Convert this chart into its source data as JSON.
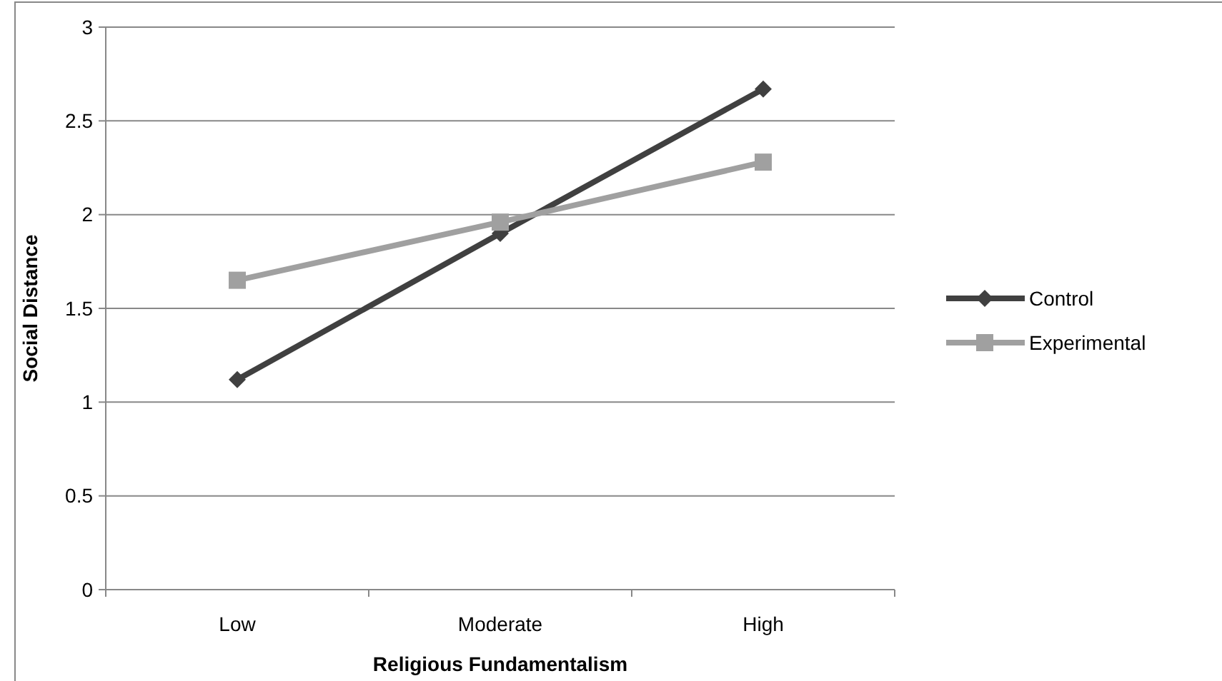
{
  "chart_data": {
    "type": "line",
    "xlabel": "Religious Fundamentalism",
    "ylabel": "Social Distance",
    "categories": [
      "Low",
      "Moderate",
      "High"
    ],
    "series": [
      {
        "name": "Control",
        "color": "#404040",
        "values": [
          1.12,
          1.9,
          2.67
        ],
        "marker": "diamond"
      },
      {
        "name": "Experimental",
        "color": "#a0a0a0",
        "values": [
          1.65,
          1.96,
          2.28
        ],
        "marker": "square"
      }
    ],
    "ylim": [
      0,
      3
    ],
    "yticks": [
      0,
      0.5,
      1,
      1.5,
      2,
      2.5,
      3
    ],
    "grid": "y",
    "legend": "right",
    "line_style": "solid"
  }
}
